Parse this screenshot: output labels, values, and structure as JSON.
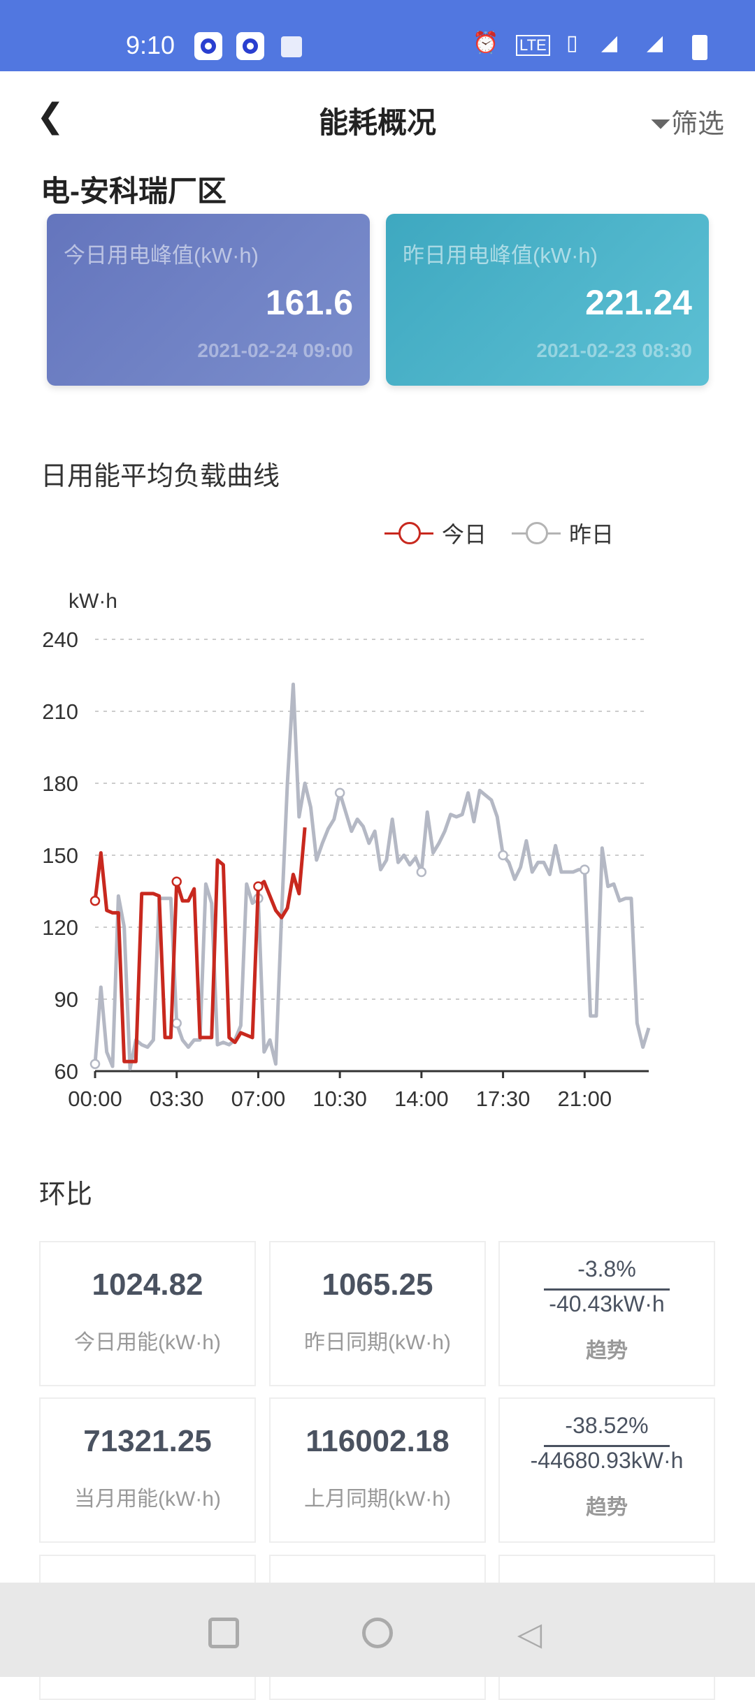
{
  "status_bar": {
    "time": "9:10",
    "icons": [
      "app-icon",
      "app-icon",
      "gallery-icon",
      "alarm-icon",
      "volte-icon",
      "vibrate-icon",
      "signal-4g-icon",
      "signal-5g-icon",
      "battery-icon"
    ],
    "color": "#5177e0"
  },
  "header": {
    "back_icon": "chevron-left-icon",
    "title": "能耗概况",
    "filter_label": "筛选",
    "filter_icon": "funnel-icon"
  },
  "site_title": "电-安科瑞厂区",
  "peak_cards": [
    {
      "label": "今日用电峰值(kW·h)",
      "value": "161.6",
      "time": "2021-02-24 09:00"
    },
    {
      "label": "昨日用电峰值(kW·h)",
      "value": "221.24",
      "time": "2021-02-23 08:30"
    }
  ],
  "chart_title": "日用能平均负载曲线",
  "chart_data": {
    "type": "line",
    "ylabel": "kW·h",
    "ylim": [
      60,
      240
    ],
    "yticks": [
      "60",
      "90",
      "120",
      "150",
      "180",
      "210",
      "240"
    ],
    "xticks": [
      "00:00",
      "03:30",
      "07:00",
      "10:30",
      "14:00",
      "17:30",
      "21:00"
    ],
    "x_interval": "15min",
    "grid": true,
    "legend_position": "top-right",
    "series": [
      {
        "name": "今日",
        "color": "#c8281e",
        "values": [
          131,
          151,
          127,
          126,
          126,
          64,
          64,
          64,
          134,
          134,
          134,
          133,
          74,
          74,
          139,
          131,
          131,
          136,
          74,
          74,
          74,
          148,
          146,
          74,
          72,
          76,
          75,
          74,
          137,
          139,
          133,
          127,
          124,
          128,
          142,
          134,
          161.6
        ]
      },
      {
        "name": "昨日",
        "color": "#b4b8c4",
        "values": [
          63,
          95,
          68,
          62,
          133,
          120,
          61,
          73,
          71,
          70,
          73,
          132,
          132,
          132,
          80,
          73,
          70,
          73,
          73,
          138,
          130,
          71,
          72,
          71,
          73,
          79,
          138,
          130,
          132,
          68,
          73,
          63,
          125,
          180,
          221.24,
          166,
          180,
          170,
          148,
          155,
          161,
          165,
          176,
          168,
          160,
          165,
          162,
          155,
          160,
          144,
          148,
          165,
          147,
          150,
          146,
          149,
          143,
          168,
          151,
          155,
          160,
          167,
          166,
          167,
          176,
          164,
          177,
          175,
          173,
          166,
          150,
          147,
          140,
          145,
          156,
          143,
          147,
          147,
          142,
          154,
          143,
          143,
          143,
          144,
          144,
          83,
          83,
          153,
          137,
          138,
          131,
          132,
          132,
          80,
          70,
          78
        ]
      }
    ]
  },
  "comparison": {
    "title": "环比",
    "rows": [
      {
        "current_value": "1024.82",
        "current_label": "今日用能(kW·h)",
        "previous_value": "1065.25",
        "previous_label": "昨日同期(kW·h)",
        "trend_percent": "-3.8%",
        "trend_diff": "-40.43kW·h",
        "trend_label": "趋势"
      },
      {
        "current_value": "71321.25",
        "current_label": "当月用能(kW·h)",
        "previous_value": "116002.18",
        "previous_label": "上月同期(kW·h)",
        "trend_percent": "-38.52%",
        "trend_diff": "-44680.93kW·h",
        "trend_label": "趋势"
      }
    ]
  },
  "nav_bar": {
    "icons": [
      "recents-square-icon",
      "home-circle-icon",
      "back-triangle-icon"
    ]
  }
}
